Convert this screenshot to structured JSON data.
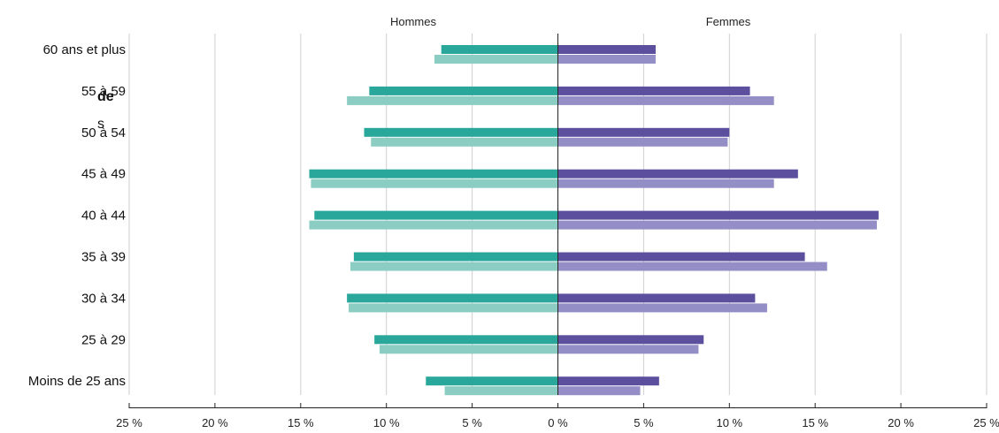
{
  "clipped_text": {
    "line1": "de",
    "line2": "s"
  },
  "chart_data": {
    "type": "bar",
    "orientation": "horizontal-butterfly",
    "panel_labels": {
      "left": "Hommes",
      "right": "Femmes"
    },
    "categories": [
      "60 ans et plus",
      "55 à 59",
      "50 à 54",
      "45 à 49",
      "40 à 44",
      "35 à 39",
      "30 à 34",
      "25 à 29",
      "Moins de 25 ans"
    ],
    "series": [
      {
        "side": "left",
        "color": "#2aa79b",
        "values": [
          6.8,
          11.0,
          11.3,
          14.5,
          14.2,
          11.9,
          12.3,
          10.7,
          7.7
        ]
      },
      {
        "side": "left",
        "color": "#8bcdc2",
        "values": [
          7.2,
          12.3,
          10.9,
          14.4,
          14.5,
          12.1,
          12.2,
          10.4,
          6.6
        ]
      },
      {
        "side": "right",
        "color": "#5b4f9e",
        "values": [
          5.7,
          11.2,
          10.0,
          14.0,
          18.7,
          14.4,
          11.5,
          8.5,
          5.9
        ]
      },
      {
        "side": "right",
        "color": "#948ec6",
        "values": [
          5.7,
          12.6,
          9.9,
          12.6,
          18.6,
          15.7,
          12.2,
          8.2,
          4.8
        ]
      }
    ],
    "x_ticks": [
      "25 %",
      "20 %",
      "15 %",
      "10 %",
      "5 %",
      "0 %",
      "5 %",
      "10 %",
      "15 %",
      "20 %",
      "25 %"
    ],
    "xlim": [
      -25,
      25
    ],
    "grid": true
  }
}
